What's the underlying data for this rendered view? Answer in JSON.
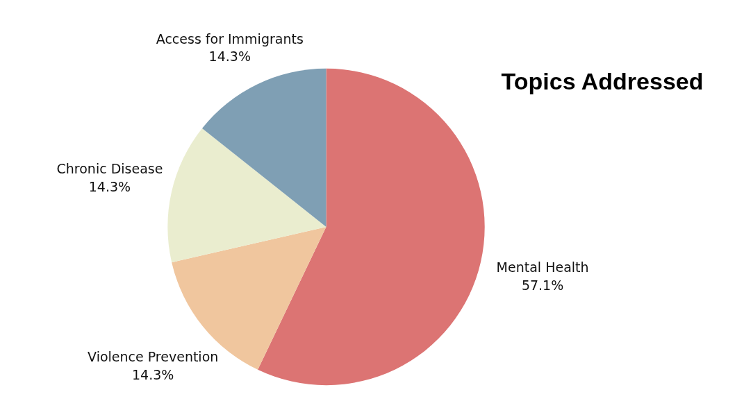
{
  "chart_data": {
    "type": "pie",
    "title": "Topics Addressed",
    "categories": [
      "Mental Health",
      "Violence Prevention",
      "Chronic Disease",
      "Access for Immigrants"
    ],
    "values": [
      57.1,
      14.3,
      14.3,
      14.3
    ],
    "colors": [
      "#dc7473",
      "#f0c69e",
      "#eaedcf",
      "#7f9fb4"
    ],
    "value_labels": [
      "57.1%",
      "14.3%",
      "14.3%",
      "14.3%"
    ]
  }
}
